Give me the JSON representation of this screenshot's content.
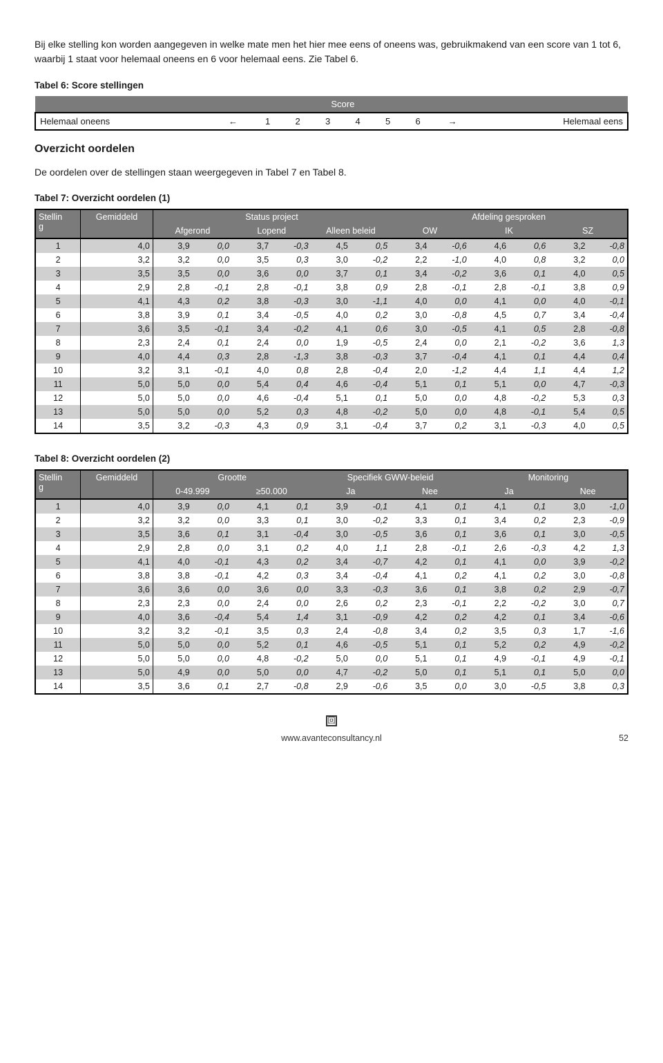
{
  "intro": "Bij elke stelling kon worden aangegeven in welke mate men het hier mee eens of oneens was, gebruikmakend van een score van 1 tot 6, waarbij 1 staat voor helemaal oneens en 6 voor helemaal eens. Zie Tabel 6.",
  "table6": {
    "caption": "Tabel 6: Score stellingen",
    "score_label": "Score",
    "left": "Helemaal oneens",
    "right": "Helemaal eens",
    "arrowL": "←",
    "arrowR": "→",
    "nums": [
      "1",
      "2",
      "3",
      "4",
      "5",
      "6"
    ]
  },
  "overzicht": {
    "title": "Overzicht oordelen",
    "text": "De oordelen over de stellingen staan weergegeven in Tabel 7 en Tabel 8."
  },
  "table7": {
    "caption": "Tabel 7: Overzicht oordelen (1)",
    "h1": {
      "stelling": "Stelling",
      "gem": "Gemiddeld",
      "status": "Status project",
      "afd": "Afdeling gesproken"
    },
    "h2": {
      "afgerond": "Afgerond",
      "lopend": "Lopend",
      "alleen": "Alleen beleid",
      "ow": "OW",
      "ik": "IK",
      "sz": "SZ"
    },
    "rows": [
      {
        "n": "1",
        "g": "4,0",
        "c": [
          [
            "3,9",
            "0,0"
          ],
          [
            "3,7",
            "-0,3"
          ],
          [
            "4,5",
            "0,5"
          ],
          [
            "3,4",
            "-0,6"
          ],
          [
            "4,6",
            "0,6"
          ],
          [
            "3,2",
            "-0,8"
          ]
        ]
      },
      {
        "n": "2",
        "g": "3,2",
        "c": [
          [
            "3,2",
            "0,0"
          ],
          [
            "3,5",
            "0,3"
          ],
          [
            "3,0",
            "-0,2"
          ],
          [
            "2,2",
            "-1,0"
          ],
          [
            "4,0",
            "0,8"
          ],
          [
            "3,2",
            "0,0"
          ]
        ]
      },
      {
        "n": "3",
        "g": "3,5",
        "c": [
          [
            "3,5",
            "0,0"
          ],
          [
            "3,6",
            "0,0"
          ],
          [
            "3,7",
            "0,1"
          ],
          [
            "3,4",
            "-0,2"
          ],
          [
            "3,6",
            "0,1"
          ],
          [
            "4,0",
            "0,5"
          ]
        ]
      },
      {
        "n": "4",
        "g": "2,9",
        "c": [
          [
            "2,8",
            "-0,1"
          ],
          [
            "2,8",
            "-0,1"
          ],
          [
            "3,8",
            "0,9"
          ],
          [
            "2,8",
            "-0,1"
          ],
          [
            "2,8",
            "-0,1"
          ],
          [
            "3,8",
            "0,9"
          ]
        ]
      },
      {
        "n": "5",
        "g": "4,1",
        "c": [
          [
            "4,3",
            "0,2"
          ],
          [
            "3,8",
            "-0,3"
          ],
          [
            "3,0",
            "-1,1"
          ],
          [
            "4,0",
            "0,0"
          ],
          [
            "4,1",
            "0,0"
          ],
          [
            "4,0",
            "-0,1"
          ]
        ]
      },
      {
        "n": "6",
        "g": "3,8",
        "c": [
          [
            "3,9",
            "0,1"
          ],
          [
            "3,4",
            "-0,5"
          ],
          [
            "4,0",
            "0,2"
          ],
          [
            "3,0",
            "-0,8"
          ],
          [
            "4,5",
            "0,7"
          ],
          [
            "3,4",
            "-0,4"
          ]
        ]
      },
      {
        "n": "7",
        "g": "3,6",
        "c": [
          [
            "3,5",
            "-0,1"
          ],
          [
            "3,4",
            "-0,2"
          ],
          [
            "4,1",
            "0,6"
          ],
          [
            "3,0",
            "-0,5"
          ],
          [
            "4,1",
            "0,5"
          ],
          [
            "2,8",
            "-0,8"
          ]
        ]
      },
      {
        "n": "8",
        "g": "2,3",
        "c": [
          [
            "2,4",
            "0,1"
          ],
          [
            "2,4",
            "0,0"
          ],
          [
            "1,9",
            "-0,5"
          ],
          [
            "2,4",
            "0,0"
          ],
          [
            "2,1",
            "-0,2"
          ],
          [
            "3,6",
            "1,3"
          ]
        ]
      },
      {
        "n": "9",
        "g": "4,0",
        "c": [
          [
            "4,4",
            "0,3"
          ],
          [
            "2,8",
            "-1,3"
          ],
          [
            "3,8",
            "-0,3"
          ],
          [
            "3,7",
            "-0,4"
          ],
          [
            "4,1",
            "0,1"
          ],
          [
            "4,4",
            "0,4"
          ]
        ]
      },
      {
        "n": "10",
        "g": "3,2",
        "c": [
          [
            "3,1",
            "-0,1"
          ],
          [
            "4,0",
            "0,8"
          ],
          [
            "2,8",
            "-0,4"
          ],
          [
            "2,0",
            "-1,2"
          ],
          [
            "4,4",
            "1,1"
          ],
          [
            "4,4",
            "1,2"
          ]
        ]
      },
      {
        "n": "11",
        "g": "5,0",
        "c": [
          [
            "5,0",
            "0,0"
          ],
          [
            "5,4",
            "0,4"
          ],
          [
            "4,6",
            "-0,4"
          ],
          [
            "5,1",
            "0,1"
          ],
          [
            "5,1",
            "0,0"
          ],
          [
            "4,7",
            "-0,3"
          ]
        ]
      },
      {
        "n": "12",
        "g": "5,0",
        "c": [
          [
            "5,0",
            "0,0"
          ],
          [
            "4,6",
            "-0,4"
          ],
          [
            "5,1",
            "0,1"
          ],
          [
            "5,0",
            "0,0"
          ],
          [
            "4,8",
            "-0,2"
          ],
          [
            "5,3",
            "0,3"
          ]
        ]
      },
      {
        "n": "13",
        "g": "5,0",
        "c": [
          [
            "5,0",
            "0,0"
          ],
          [
            "5,2",
            "0,3"
          ],
          [
            "4,8",
            "-0,2"
          ],
          [
            "5,0",
            "0,0"
          ],
          [
            "4,8",
            "-0,1"
          ],
          [
            "5,4",
            "0,5"
          ]
        ]
      },
      {
        "n": "14",
        "g": "3,5",
        "c": [
          [
            "3,2",
            "-0,3"
          ],
          [
            "4,3",
            "0,9"
          ],
          [
            "3,1",
            "-0,4"
          ],
          [
            "3,7",
            "0,2"
          ],
          [
            "3,1",
            "-0,3"
          ],
          [
            "4,0",
            "0,5"
          ]
        ]
      }
    ]
  },
  "table8": {
    "caption": "Tabel 8: Overzicht oordelen (2)",
    "h1": {
      "stelling": "Stelling",
      "gem": "Gemiddeld",
      "grootte": "Grootte",
      "spec": "Specifiek GWW-beleid",
      "mon": "Monitoring"
    },
    "h2": {
      "a": "0-49.999",
      "b": "≥50.000",
      "ja": "Ja",
      "nee": "Nee",
      "ja2": "Ja",
      "nee2": "Nee"
    },
    "rows": [
      {
        "n": "1",
        "g": "4,0",
        "c": [
          [
            "3,9",
            "0,0"
          ],
          [
            "4,1",
            "0,1"
          ],
          [
            "3,9",
            "-0,1"
          ],
          [
            "4,1",
            "0,1"
          ],
          [
            "4,1",
            "0,1"
          ],
          [
            "3,0",
            "-1,0"
          ]
        ]
      },
      {
        "n": "2",
        "g": "3,2",
        "c": [
          [
            "3,2",
            "0,0"
          ],
          [
            "3,3",
            "0,1"
          ],
          [
            "3,0",
            "-0,2"
          ],
          [
            "3,3",
            "0,1"
          ],
          [
            "3,4",
            "0,2"
          ],
          [
            "2,3",
            "-0,9"
          ]
        ]
      },
      {
        "n": "3",
        "g": "3,5",
        "c": [
          [
            "3,6",
            "0,1"
          ],
          [
            "3,1",
            "-0,4"
          ],
          [
            "3,0",
            "-0,5"
          ],
          [
            "3,6",
            "0,1"
          ],
          [
            "3,6",
            "0,1"
          ],
          [
            "3,0",
            "-0,5"
          ]
        ]
      },
      {
        "n": "4",
        "g": "2,9",
        "c": [
          [
            "2,8",
            "0,0"
          ],
          [
            "3,1",
            "0,2"
          ],
          [
            "4,0",
            "1,1"
          ],
          [
            "2,8",
            "-0,1"
          ],
          [
            "2,6",
            "-0,3"
          ],
          [
            "4,2",
            "1,3"
          ]
        ]
      },
      {
        "n": "5",
        "g": "4,1",
        "c": [
          [
            "4,0",
            "-0,1"
          ],
          [
            "4,3",
            "0,2"
          ],
          [
            "3,4",
            "-0,7"
          ],
          [
            "4,2",
            "0,1"
          ],
          [
            "4,1",
            "0,0"
          ],
          [
            "3,9",
            "-0,2"
          ]
        ]
      },
      {
        "n": "6",
        "g": "3,8",
        "c": [
          [
            "3,8",
            "-0,1"
          ],
          [
            "4,2",
            "0,3"
          ],
          [
            "3,4",
            "-0,4"
          ],
          [
            "4,1",
            "0,2"
          ],
          [
            "4,1",
            "0,2"
          ],
          [
            "3,0",
            "-0,8"
          ]
        ]
      },
      {
        "n": "7",
        "g": "3,6",
        "c": [
          [
            "3,6",
            "0,0"
          ],
          [
            "3,6",
            "0,0"
          ],
          [
            "3,3",
            "-0,3"
          ],
          [
            "3,6",
            "0,1"
          ],
          [
            "3,8",
            "0,2"
          ],
          [
            "2,9",
            "-0,7"
          ]
        ]
      },
      {
        "n": "8",
        "g": "2,3",
        "c": [
          [
            "2,3",
            "0,0"
          ],
          [
            "2,4",
            "0,0"
          ],
          [
            "2,6",
            "0,2"
          ],
          [
            "2,3",
            "-0,1"
          ],
          [
            "2,2",
            "-0,2"
          ],
          [
            "3,0",
            "0,7"
          ]
        ]
      },
      {
        "n": "9",
        "g": "4,0",
        "c": [
          [
            "3,6",
            "-0,4"
          ],
          [
            "5,4",
            "1,4"
          ],
          [
            "3,1",
            "-0,9"
          ],
          [
            "4,2",
            "0,2"
          ],
          [
            "4,2",
            "0,1"
          ],
          [
            "3,4",
            "-0,6"
          ]
        ]
      },
      {
        "n": "10",
        "g": "3,2",
        "c": [
          [
            "3,2",
            "-0,1"
          ],
          [
            "3,5",
            "0,3"
          ],
          [
            "2,4",
            "-0,8"
          ],
          [
            "3,4",
            "0,2"
          ],
          [
            "3,5",
            "0,3"
          ],
          [
            "1,7",
            "-1,6"
          ]
        ]
      },
      {
        "n": "11",
        "g": "5,0",
        "c": [
          [
            "5,0",
            "0,0"
          ],
          [
            "5,2",
            "0,1"
          ],
          [
            "4,6",
            "-0,5"
          ],
          [
            "5,1",
            "0,1"
          ],
          [
            "5,2",
            "0,2"
          ],
          [
            "4,9",
            "-0,2"
          ]
        ]
      },
      {
        "n": "12",
        "g": "5,0",
        "c": [
          [
            "5,0",
            "0,0"
          ],
          [
            "4,8",
            "-0,2"
          ],
          [
            "5,0",
            "0,0"
          ],
          [
            "5,1",
            "0,1"
          ],
          [
            "4,9",
            "-0,1"
          ],
          [
            "4,9",
            "-0,1"
          ]
        ]
      },
      {
        "n": "13",
        "g": "5,0",
        "c": [
          [
            "4,9",
            "0,0"
          ],
          [
            "5,0",
            "0,0"
          ],
          [
            "4,7",
            "-0,2"
          ],
          [
            "5,0",
            "0,1"
          ],
          [
            "5,1",
            "0,1"
          ],
          [
            "5,0",
            "0,0"
          ]
        ]
      },
      {
        "n": "14",
        "g": "3,5",
        "c": [
          [
            "3,6",
            "0,1"
          ],
          [
            "2,7",
            "-0,8"
          ],
          [
            "2,9",
            "-0,6"
          ],
          [
            "3,5",
            "0,0"
          ],
          [
            "3,0",
            "-0,5"
          ],
          [
            "3,8",
            "0,3"
          ]
        ]
      }
    ]
  },
  "footer": {
    "url": "www.avanteconsultancy.nl",
    "page": "52",
    "glyph": "回"
  }
}
